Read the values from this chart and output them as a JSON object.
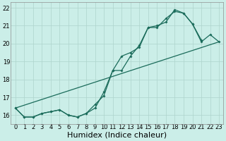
{
  "x_values": [
    0,
    1,
    2,
    3,
    4,
    5,
    6,
    7,
    8,
    9,
    10,
    11,
    12,
    13,
    14,
    15,
    16,
    17,
    18,
    19,
    20,
    21,
    22,
    23
  ],
  "line1_x": [
    0,
    1,
    2,
    3,
    4,
    5,
    6,
    7,
    8,
    9,
    10,
    11,
    12,
    13,
    14,
    15,
    16,
    17,
    18,
    19,
    20,
    21
  ],
  "line1_y": [
    16.4,
    15.9,
    15.9,
    16.1,
    16.2,
    16.3,
    16.0,
    15.9,
    16.1,
    16.6,
    17.1,
    18.5,
    18.5,
    19.3,
    19.9,
    20.9,
    21.0,
    21.2,
    21.9,
    21.7,
    21.1,
    20.2
  ],
  "line2_x": [
    0,
    1,
    2,
    3,
    4,
    5,
    6,
    7,
    8,
    9,
    10,
    11,
    12,
    13,
    14,
    15,
    16,
    17,
    18,
    19,
    20,
    21,
    22,
    23
  ],
  "line2_y": [
    16.4,
    15.9,
    15.9,
    16.1,
    16.2,
    16.3,
    16.0,
    15.9,
    16.1,
    16.4,
    17.3,
    18.5,
    19.3,
    19.5,
    19.8,
    20.9,
    20.9,
    21.4,
    21.8,
    21.7,
    21.1,
    20.1,
    20.5,
    20.1
  ],
  "line3_x": [
    0,
    23
  ],
  "line3_y": [
    16.4,
    20.1
  ],
  "bg_color": "#cbeee8",
  "grid_color": "#aed4cc",
  "line_color": "#1a6b5a",
  "xlim": [
    -0.5,
    23.5
  ],
  "ylim": [
    15.5,
    22.3
  ],
  "yticks": [
    16,
    17,
    18,
    19,
    20,
    21,
    22
  ],
  "xticks": [
    0,
    1,
    2,
    3,
    4,
    5,
    6,
    7,
    8,
    9,
    10,
    11,
    12,
    13,
    14,
    15,
    16,
    17,
    18,
    19,
    20,
    21,
    22,
    23
  ],
  "xlabel": "Humidex (Indice chaleur)",
  "xlabel_fontsize": 8,
  "tick_fontsize": 6,
  "figsize": [
    3.2,
    2.0
  ],
  "dpi": 100
}
